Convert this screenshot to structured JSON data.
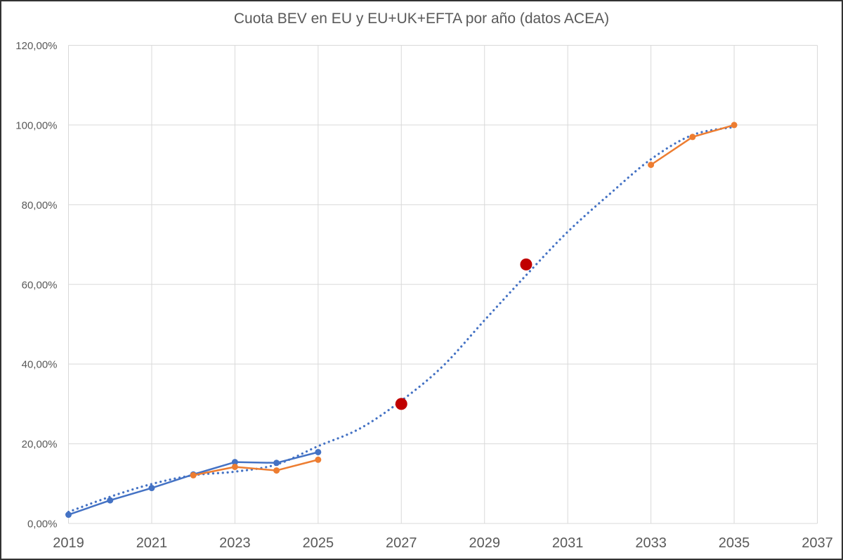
{
  "chart_data": {
    "type": "line",
    "title": "Cuota BEV en EU y EU+UK+EFTA por año (datos ACEA)",
    "grid": true,
    "legend": "none",
    "x_axis": {
      "min": 2019,
      "max": 2037,
      "ticks": [
        {
          "value": 2019,
          "label": "2019"
        },
        {
          "value": 2021,
          "label": "2021"
        },
        {
          "value": 2023,
          "label": "2023"
        },
        {
          "value": 2025,
          "label": "2025"
        },
        {
          "value": 2027,
          "label": "2027"
        },
        {
          "value": 2029,
          "label": "2029"
        },
        {
          "value": 2031,
          "label": "2031"
        },
        {
          "value": 2033,
          "label": "2033"
        },
        {
          "value": 2035,
          "label": "2035"
        },
        {
          "value": 2037,
          "label": "2037"
        }
      ]
    },
    "y_axis": {
      "min": 0,
      "max": 120,
      "ticks": [
        {
          "value": 0,
          "label": "0,00%"
        },
        {
          "value": 20,
          "label": "20,00%"
        },
        {
          "value": 40,
          "label": "40,00%"
        },
        {
          "value": 60,
          "label": "60,00%"
        },
        {
          "value": 80,
          "label": "80,00%"
        },
        {
          "value": 100,
          "label": "100,00%"
        },
        {
          "value": 120,
          "label": "120,00%"
        }
      ]
    },
    "series": [
      {
        "id": "tendencia-punteada",
        "type": "dotted",
        "color": "#4472C4",
        "points": [
          [
            2019,
            2.9
          ],
          [
            2020,
            6.7
          ],
          [
            2021,
            9.9
          ],
          [
            2022,
            12.1
          ],
          [
            2023,
            13.0
          ],
          [
            2024,
            14.8
          ],
          [
            2025,
            19.4
          ],
          [
            2026,
            23.8
          ],
          [
            2027,
            30.8
          ],
          [
            2028,
            39.5
          ],
          [
            2029,
            51.0
          ],
          [
            2030,
            62.3
          ],
          [
            2031,
            73.2
          ],
          [
            2032,
            82.6
          ],
          [
            2033,
            91.4
          ],
          [
            2034,
            97.5
          ],
          [
            2035,
            99.5
          ]
        ]
      },
      {
        "id": "serie-azul",
        "type": "line",
        "color": "#4472C4",
        "marker_radius": 4.5,
        "segments": [
          [
            [
              2019,
              2.2
            ],
            [
              2020,
              5.8
            ],
            [
              2021,
              8.9
            ],
            [
              2022,
              12.3
            ],
            [
              2023,
              15.4
            ],
            [
              2024,
              15.2
            ],
            [
              2025,
              17.9
            ]
          ]
        ]
      },
      {
        "id": "serie-naranja",
        "type": "line",
        "color": "#ED7D31",
        "marker_radius": 4.5,
        "segments": [
          [
            [
              2022,
              12.1
            ],
            [
              2023,
              14.2
            ],
            [
              2024,
              13.3
            ],
            [
              2025,
              16.0
            ]
          ],
          [
            [
              2033,
              90.0
            ],
            [
              2034,
              97.0
            ],
            [
              2035,
              100.0
            ]
          ]
        ]
      },
      {
        "id": "puntos-rojos",
        "type": "scatter",
        "color": "#C00000",
        "marker_radius": 8.5,
        "points": [
          [
            2027,
            30.0
          ],
          [
            2030,
            65.0
          ]
        ]
      }
    ],
    "colors": {
      "gridline": "#D9D9D9",
      "axis_text": "#595959",
      "title_text": "#595959",
      "frame_border": "#333333",
      "background": "#FFFFFF"
    }
  }
}
